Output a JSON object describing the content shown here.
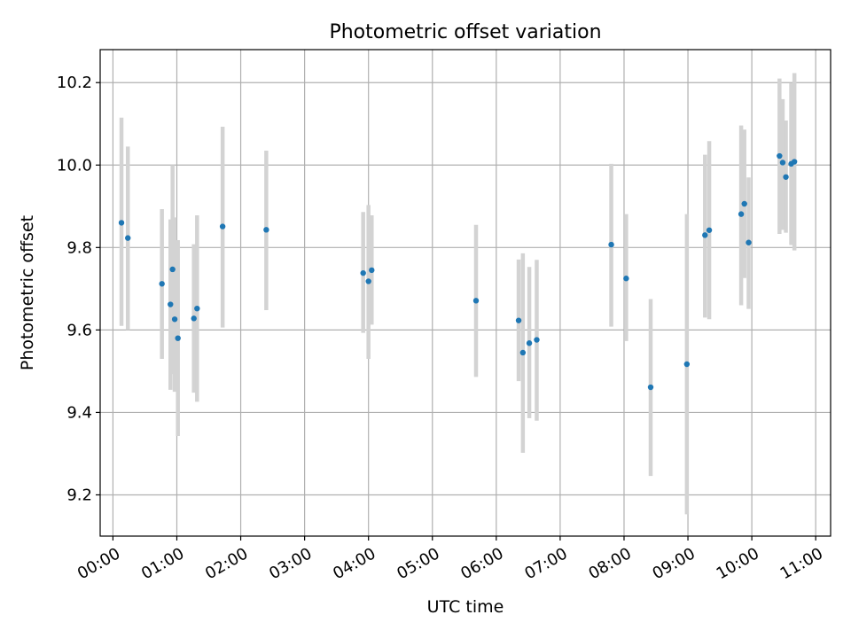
{
  "chart_data": {
    "type": "scatter",
    "title": "Photometric offset variation",
    "xlabel": "UTC time",
    "ylabel": "Photometric offset",
    "xlim": [
      "-00:12",
      "11:14"
    ],
    "ylim": [
      9.1,
      10.28
    ],
    "x_ticks": [
      "00:00",
      "01:00",
      "02:00",
      "03:00",
      "04:00",
      "05:00",
      "06:00",
      "07:00",
      "08:00",
      "09:00",
      "10:00",
      "11:00"
    ],
    "y_ticks": [
      9.2,
      9.4,
      9.6,
      9.8,
      10.0,
      10.2
    ],
    "grid": true,
    "marker_color": "#1f77b4",
    "errorbar_color": "#d3d3d3",
    "points": [
      {
        "x": "00:08",
        "y": 9.86,
        "ylow": 9.61,
        "yhigh": 10.115
      },
      {
        "x": "00:14",
        "y": 9.823,
        "ylow": 9.6,
        "yhigh": 10.045
      },
      {
        "x": "00:46",
        "y": 9.712,
        "ylow": 9.53,
        "yhigh": 9.893
      },
      {
        "x": "00:54",
        "y": 9.662,
        "ylow": 9.455,
        "yhigh": 9.868
      },
      {
        "x": "00:56",
        "y": 9.747,
        "ylow": 9.493,
        "yhigh": 10.0
      },
      {
        "x": "00:58",
        "y": 9.626,
        "ylow": 9.45,
        "yhigh": 9.873
      },
      {
        "x": "01:01",
        "y": 9.58,
        "ylow": 9.343,
        "yhigh": 9.818
      },
      {
        "x": "01:16",
        "y": 9.628,
        "ylow": 9.448,
        "yhigh": 9.808
      },
      {
        "x": "01:19",
        "y": 9.652,
        "ylow": 9.426,
        "yhigh": 9.878
      },
      {
        "x": "01:43",
        "y": 9.851,
        "ylow": 9.606,
        "yhigh": 10.093
      },
      {
        "x": "02:24",
        "y": 9.843,
        "ylow": 9.648,
        "yhigh": 10.035
      },
      {
        "x": "03:55",
        "y": 9.738,
        "ylow": 9.593,
        "yhigh": 9.886
      },
      {
        "x": "04:00",
        "y": 9.718,
        "ylow": 9.53,
        "yhigh": 9.903
      },
      {
        "x": "04:03",
        "y": 9.745,
        "ylow": 9.613,
        "yhigh": 9.878
      },
      {
        "x": "05:41",
        "y": 9.671,
        "ylow": 9.486,
        "yhigh": 9.855
      },
      {
        "x": "06:21",
        "y": 9.623,
        "ylow": 9.476,
        "yhigh": 9.771
      },
      {
        "x": "06:25",
        "y": 9.545,
        "ylow": 9.302,
        "yhigh": 9.786
      },
      {
        "x": "06:31",
        "y": 9.568,
        "ylow": 9.386,
        "yhigh": 9.753
      },
      {
        "x": "06:38",
        "y": 9.576,
        "ylow": 9.38,
        "yhigh": 9.77
      },
      {
        "x": "07:48",
        "y": 9.807,
        "ylow": 9.608,
        "yhigh": 10.003
      },
      {
        "x": "08:02",
        "y": 9.725,
        "ylow": 9.573,
        "yhigh": 9.881
      },
      {
        "x": "08:25",
        "y": 9.461,
        "ylow": 9.246,
        "yhigh": 9.675
      },
      {
        "x": "08:59",
        "y": 9.517,
        "ylow": 9.153,
        "yhigh": 9.881
      },
      {
        "x": "09:16",
        "y": 9.83,
        "ylow": 9.63,
        "yhigh": 10.025
      },
      {
        "x": "09:20",
        "y": 9.842,
        "ylow": 9.626,
        "yhigh": 10.058
      },
      {
        "x": "09:50",
        "y": 9.881,
        "ylow": 9.66,
        "yhigh": 10.096
      },
      {
        "x": "09:53",
        "y": 9.906,
        "ylow": 9.726,
        "yhigh": 10.086
      },
      {
        "x": "09:57",
        "y": 9.812,
        "ylow": 9.651,
        "yhigh": 9.97
      },
      {
        "x": "10:26",
        "y": 10.022,
        "ylow": 9.833,
        "yhigh": 10.21
      },
      {
        "x": "10:29",
        "y": 10.006,
        "ylow": 9.843,
        "yhigh": 10.16
      },
      {
        "x": "10:32",
        "y": 9.971,
        "ylow": 9.836,
        "yhigh": 10.108
      },
      {
        "x": "10:37",
        "y": 10.003,
        "ylow": 9.806,
        "yhigh": 10.198
      },
      {
        "x": "10:40",
        "y": 10.008,
        "ylow": 9.793,
        "yhigh": 10.223
      }
    ]
  }
}
